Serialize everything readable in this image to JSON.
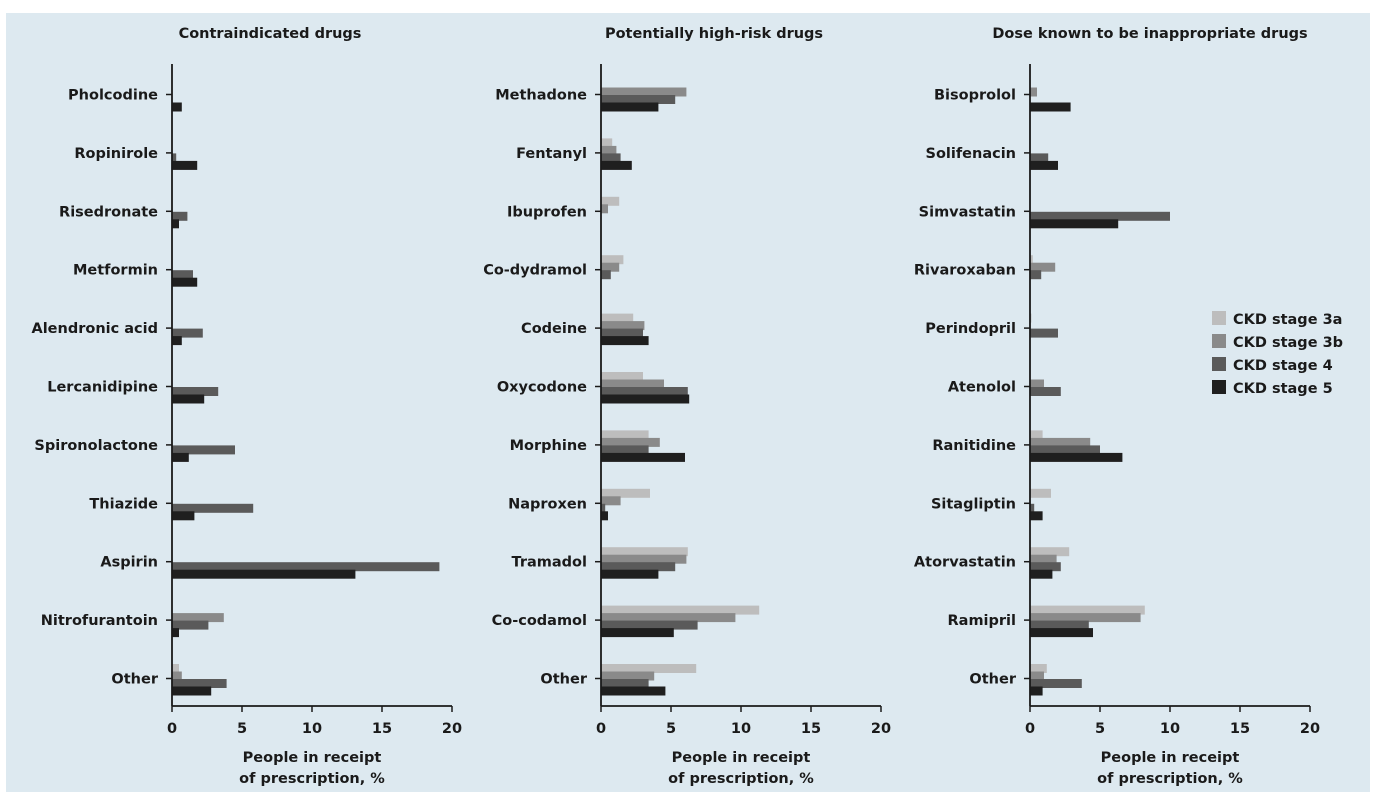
{
  "legend": [
    "CKD stage 3a",
    "CKD stage 3b",
    "CKD stage 4",
    "CKD stage 5"
  ],
  "colors": [
    "#bdbdbd",
    "#8a8a8a",
    "#5a5a5a",
    "#1f1f1f"
  ],
  "chart_data": [
    {
      "type": "bar",
      "orientation": "horizontal",
      "title": "Contraindicated drugs",
      "xlabel": [
        "People in receipt",
        "of prescription, %"
      ],
      "xlim": [
        0,
        20
      ],
      "xticks": [
        0,
        5,
        10,
        15,
        20
      ],
      "categories": [
        "Pholcodine",
        "Ropinirole",
        "Risedronate",
        "Metformin",
        "Alendronic acid",
        "Lercanidipine",
        "Spironolactone",
        "Thiazide",
        "Aspirin",
        "Nitrofurantoin",
        "Other"
      ],
      "series": [
        {
          "name": "CKD stage 3a",
          "values": [
            0,
            0,
            0,
            0,
            0,
            0,
            0,
            0,
            0,
            0,
            0.5
          ]
        },
        {
          "name": "CKD stage 3b",
          "values": [
            0,
            0,
            0,
            0,
            0,
            0,
            0,
            0,
            0,
            3.7,
            0.7
          ]
        },
        {
          "name": "CKD stage 4",
          "values": [
            0,
            0.3,
            1.1,
            1.5,
            2.2,
            3.3,
            4.5,
            5.8,
            19.1,
            2.6,
            3.9
          ]
        },
        {
          "name": "CKD stage 5",
          "values": [
            0.7,
            1.8,
            0.5,
            1.8,
            0.7,
            2.3,
            1.2,
            1.6,
            13.1,
            0.5,
            2.8
          ]
        }
      ]
    },
    {
      "type": "bar",
      "orientation": "horizontal",
      "title": "Potentially high-risk drugs",
      "xlabel": [
        "People in receipt",
        "of prescription, %"
      ],
      "xlim": [
        0,
        20
      ],
      "xticks": [
        0,
        5,
        10,
        15,
        20
      ],
      "categories": [
        "Methadone",
        "Fentanyl",
        "Ibuprofen",
        "Co-dydramol",
        "Codeine",
        "Oxycodone",
        "Morphine",
        "Naproxen",
        "Tramadol",
        "Co-codamol",
        "Other"
      ],
      "series": [
        {
          "name": "CKD stage 3a",
          "values": [
            0,
            0.8,
            1.3,
            1.6,
            2.3,
            3.0,
            3.4,
            3.5,
            6.2,
            11.3,
            6.8
          ]
        },
        {
          "name": "CKD stage 3b",
          "values": [
            6.1,
            1.1,
            0.5,
            1.3,
            3.1,
            4.5,
            4.2,
            1.4,
            6.1,
            9.6,
            3.8
          ]
        },
        {
          "name": "CKD stage 4",
          "values": [
            5.3,
            1.4,
            0,
            0.7,
            3.0,
            6.2,
            3.4,
            0.3,
            5.3,
            6.9,
            3.4
          ]
        },
        {
          "name": "CKD stage 5",
          "values": [
            4.1,
            2.2,
            0,
            0,
            3.4,
            6.3,
            6.0,
            0.5,
            4.1,
            5.2,
            4.6
          ]
        }
      ]
    },
    {
      "type": "bar",
      "orientation": "horizontal",
      "title": "Dose known to be inappropriate drugs",
      "xlabel": [
        "People in receipt",
        "of prescription, %"
      ],
      "xlim": [
        0,
        20
      ],
      "xticks": [
        0,
        5,
        10,
        15,
        20
      ],
      "categories": [
        "Bisoprolol",
        "Solifenacin",
        "Simvastatin",
        "Rivaroxaban",
        "Perindopril",
        "Atenolol",
        "Ranitidine",
        "Sitagliptin",
        "Atorvastatin",
        "Ramipril",
        "Other"
      ],
      "series": [
        {
          "name": "CKD stage 3a",
          "values": [
            0,
            0,
            0,
            0.2,
            0.1,
            0,
            0.9,
            1.5,
            2.8,
            8.2,
            1.2
          ]
        },
        {
          "name": "CKD stage 3b",
          "values": [
            0.5,
            0,
            0,
            1.8,
            0,
            1.0,
            4.3,
            0,
            1.9,
            7.9,
            1.0
          ]
        },
        {
          "name": "CKD stage 4",
          "values": [
            0,
            1.3,
            10.0,
            0.8,
            2.0,
            2.2,
            5.0,
            0.3,
            2.2,
            4.2,
            3.7
          ]
        },
        {
          "name": "CKD stage 5",
          "values": [
            2.9,
            2.0,
            6.3,
            0,
            0,
            0,
            6.6,
            0.9,
            1.6,
            4.5,
            0.9
          ]
        }
      ]
    }
  ]
}
